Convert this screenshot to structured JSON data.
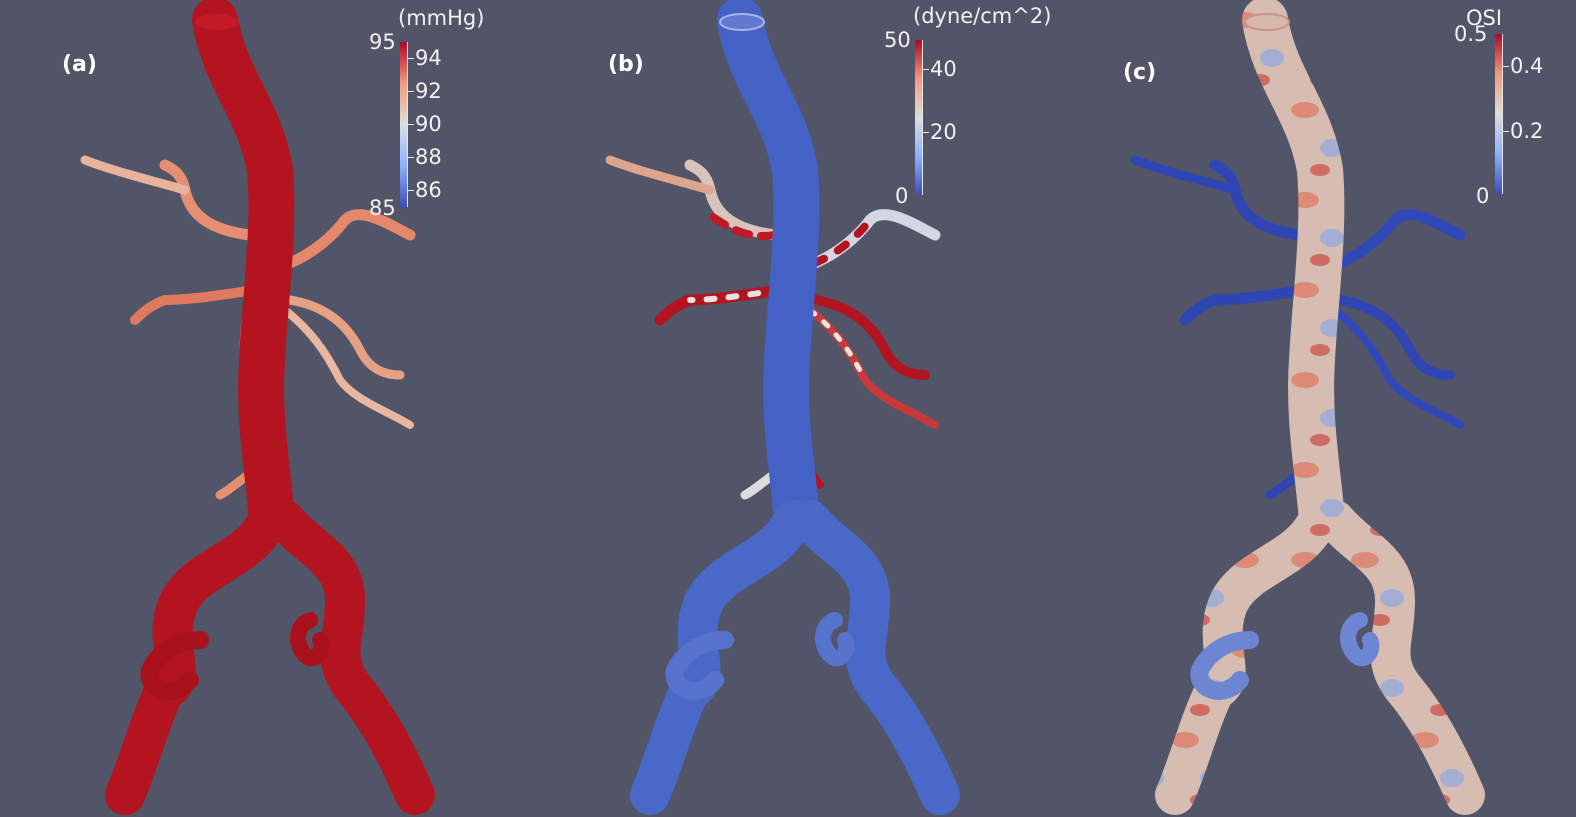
{
  "panels": [
    {
      "label": "(a)",
      "unit": "(mmHg)",
      "scale_min_label": "85",
      "scale_max_label": "95",
      "ticks": [
        "94",
        "92",
        "90",
        "88",
        "86"
      ],
      "gradient": [
        "#3b4cc0",
        "#8db0fe",
        "#dddddd",
        "#f49a7b",
        "#b40426"
      ],
      "vessel_color": "#b3141f",
      "branch_color": "#e98a6c"
    },
    {
      "label": "(b)",
      "unit": "(dyne/cm^2)",
      "scale_min_label": "0",
      "scale_max_label": "50",
      "ticks": [
        "40",
        "20"
      ],
      "gradient": [
        "#3b4cc0",
        "#8db0fe",
        "#dddddd",
        "#f49a7b",
        "#b40426"
      ],
      "vessel_color": "#4460c8",
      "branch_color": "#c9cfdf"
    },
    {
      "label": "(c)",
      "unit": "OSI",
      "scale_min_label": "0",
      "scale_max_label": "0.5",
      "ticks": [
        "0.4",
        "0.2"
      ],
      "gradient": [
        "#3b4cc0",
        "#8db0fe",
        "#dddddd",
        "#f49a7b",
        "#b40426"
      ],
      "vessel_color": "#d9b9ad",
      "branch_color": "#3148b6"
    }
  ]
}
